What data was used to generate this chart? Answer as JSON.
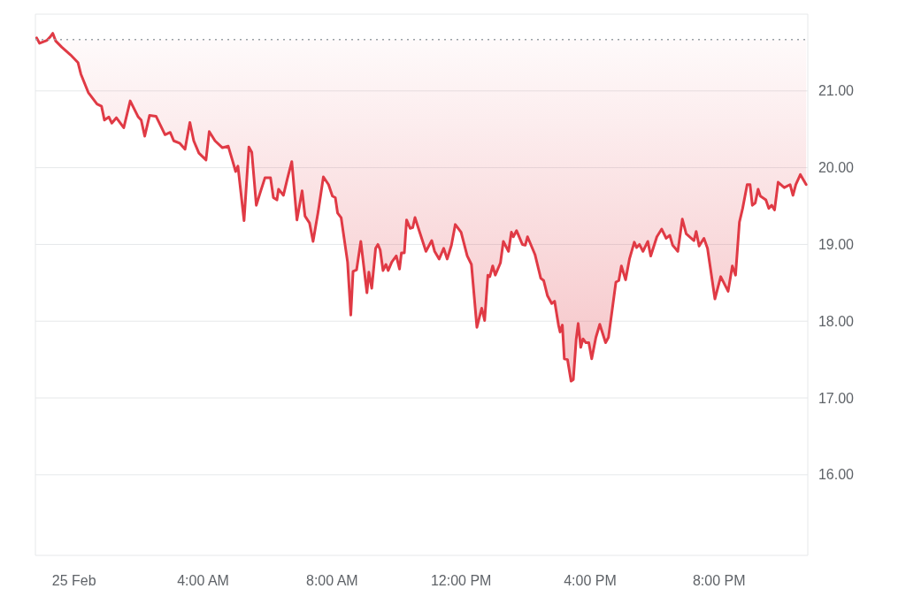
{
  "chart_data": {
    "type": "line",
    "x": [
      -1.16,
      -1.07,
      -0.84,
      -0.75,
      -0.66,
      -0.57,
      -0.38,
      -0.11,
      0.12,
      0.21,
      0.44,
      0.71,
      0.85,
      0.94,
      1.08,
      1.17,
      1.31,
      1.54,
      1.74,
      1.99,
      2.08,
      2.19,
      2.34,
      2.54,
      2.82,
      2.98,
      3.09,
      3.27,
      3.44,
      3.59,
      3.71,
      3.87,
      4.09,
      4.19,
      4.37,
      4.6,
      4.78,
      4.92,
      5.01,
      5.08,
      5.27,
      5.42,
      5.51,
      5.65,
      5.79,
      5.92,
      6.09,
      6.18,
      6.29,
      6.34,
      6.49,
      6.61,
      6.75,
      6.91,
      7.07,
      7.16,
      7.3,
      7.41,
      7.57,
      7.73,
      7.89,
      8.01,
      8.1,
      8.17,
      8.28,
      8.48,
      8.58,
      8.65,
      8.76,
      8.89,
      9.08,
      9.14,
      9.23,
      9.35,
      9.42,
      9.49,
      9.58,
      9.67,
      9.74,
      9.85,
      9.99,
      10.09,
      10.15,
      10.24,
      10.31,
      10.42,
      10.5,
      10.57,
      10.7,
      10.91,
      11.09,
      11.18,
      11.32,
      11.46,
      11.57,
      11.7,
      11.82,
      12.0,
      12.19,
      12.32,
      12.49,
      12.64,
      12.73,
      12.83,
      12.89,
      12.98,
      13.06,
      13.22,
      13.31,
      13.47,
      13.56,
      13.62,
      13.72,
      13.9,
      13.99,
      14.06,
      14.29,
      14.47,
      14.56,
      14.68,
      14.81,
      14.9,
      15.02,
      15.07,
      15.14,
      15.2,
      15.3,
      15.41,
      15.48,
      15.57,
      15.63,
      15.71,
      15.78,
      15.87,
      15.96,
      16.05,
      16.18,
      16.3,
      16.48,
      16.57,
      16.8,
      16.89,
      16.97,
      17.1,
      17.22,
      17.37,
      17.44,
      17.53,
      17.64,
      17.79,
      17.88,
      18.07,
      18.22,
      18.36,
      18.47,
      18.56,
      18.72,
      18.86,
      18.98,
      19.22,
      19.29,
      19.38,
      19.53,
      19.64,
      19.87,
      20.05,
      20.28,
      20.41,
      20.51,
      20.63,
      20.73,
      20.87,
      20.96,
      21.03,
      21.12,
      21.21,
      21.28,
      21.45,
      21.54,
      21.63,
      21.72,
      21.83,
      22.02,
      22.2,
      22.29,
      22.38,
      22.52,
      22.7
    ],
    "series": [
      {
        "color": "#e03a45",
        "values": [
          21.69,
          21.62,
          21.66,
          21.7,
          21.75,
          21.65,
          21.57,
          21.47,
          21.37,
          21.22,
          20.98,
          20.83,
          20.8,
          20.62,
          20.66,
          20.58,
          20.65,
          20.52,
          20.87,
          20.66,
          20.62,
          20.41,
          20.68,
          20.67,
          20.43,
          20.46,
          20.35,
          20.32,
          20.24,
          20.59,
          20.35,
          20.19,
          20.1,
          20.47,
          20.35,
          20.26,
          20.28,
          20.08,
          19.95,
          20.02,
          19.31,
          20.27,
          20.2,
          19.51,
          19.7,
          19.87,
          19.87,
          19.61,
          19.58,
          19.72,
          19.64,
          19.85,
          20.08,
          19.32,
          19.7,
          19.37,
          19.28,
          19.04,
          19.43,
          19.88,
          19.78,
          19.63,
          19.61,
          19.41,
          19.35,
          18.77,
          18.08,
          18.65,
          18.67,
          19.04,
          18.37,
          18.64,
          18.43,
          18.95,
          19.0,
          18.93,
          18.66,
          18.74,
          18.66,
          18.77,
          18.85,
          18.68,
          18.89,
          18.89,
          19.32,
          19.21,
          19.22,
          19.35,
          19.18,
          18.91,
          19.05,
          18.91,
          18.81,
          18.95,
          18.81,
          18.99,
          19.26,
          19.16,
          18.85,
          18.74,
          17.92,
          18.17,
          18.01,
          18.6,
          18.58,
          18.72,
          18.6,
          18.76,
          19.04,
          18.91,
          19.16,
          19.1,
          19.18,
          19.0,
          18.99,
          19.1,
          18.87,
          18.56,
          18.53,
          18.33,
          18.23,
          18.26,
          17.95,
          17.86,
          17.95,
          17.51,
          17.5,
          17.22,
          17.24,
          17.77,
          17.97,
          17.66,
          17.77,
          17.72,
          17.72,
          17.51,
          17.79,
          17.96,
          17.72,
          17.79,
          18.51,
          18.53,
          18.72,
          18.54,
          18.81,
          19.03,
          18.96,
          19.0,
          18.91,
          19.04,
          18.85,
          19.1,
          19.2,
          19.08,
          19.12,
          18.99,
          18.91,
          19.33,
          19.14,
          19.05,
          19.17,
          18.98,
          19.08,
          18.95,
          18.29,
          18.58,
          18.39,
          18.72,
          18.6,
          19.29,
          19.47,
          19.78,
          19.78,
          19.51,
          19.54,
          19.72,
          19.63,
          19.58,
          19.47,
          19.51,
          19.45,
          19.81,
          19.74,
          19.78,
          19.64,
          19.78,
          19.91,
          19.78
        ]
      }
    ],
    "xlim": [
      -1.2,
      22.75
    ],
    "xticks": [
      {
        "value": 0,
        "label": "25 Feb"
      },
      {
        "value": 4,
        "label": "4:00 AM"
      },
      {
        "value": 8,
        "label": "8:00 AM"
      },
      {
        "value": 12,
        "label": "12:00 PM"
      },
      {
        "value": 16,
        "label": "4:00 PM"
      },
      {
        "value": 20,
        "label": "8:00 PM"
      }
    ],
    "ylim": [
      14.95,
      22.0
    ],
    "yticks": [
      {
        "value": 16,
        "label": "16.00"
      },
      {
        "value": 17,
        "label": "17.00"
      },
      {
        "value": 18,
        "label": "18.00"
      },
      {
        "value": 19,
        "label": "19.00"
      },
      {
        "value": 20,
        "label": "20.00"
      },
      {
        "value": 21,
        "label": "21.00"
      }
    ],
    "grid": "y",
    "ref_lines": [
      {
        "axis": "y",
        "value": 21.67,
        "color": "#9aa0a6",
        "line_style": "dotted"
      }
    ]
  }
}
